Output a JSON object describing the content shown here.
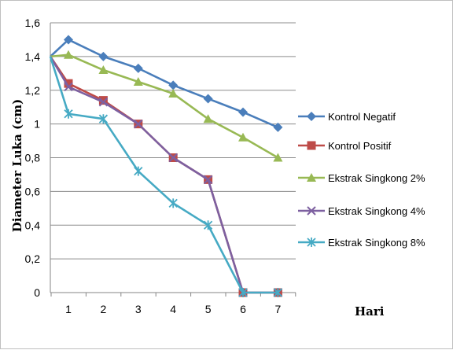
{
  "chart_data": {
    "type": "line",
    "x": [
      1,
      2,
      3,
      4,
      5,
      6,
      7
    ],
    "ylabel": "Diameter Luka (cm)",
    "xlabel": "Hari",
    "ylim": [
      0,
      1.6
    ],
    "yticks": [
      "0",
      "0,2",
      "0,4",
      "0,6",
      "0,8",
      "1",
      "1,2",
      "1,4",
      "1,6"
    ],
    "xticks": [
      "1",
      "2",
      "3",
      "4",
      "5",
      "6",
      "7"
    ],
    "grid": "horizontal",
    "legend_position": "right",
    "series": [
      {
        "name": "Kontrol Negatif",
        "color": "#4a7ebb",
        "marker": "diamond",
        "start": 1.4,
        "values": [
          1.5,
          1.4,
          1.33,
          1.23,
          1.15,
          1.07,
          0.98
        ]
      },
      {
        "name": "Kontrol Positif",
        "color": "#be4b48",
        "marker": "square",
        "start": 1.4,
        "values": [
          1.24,
          1.14,
          1.0,
          0.8,
          0.67,
          0.0,
          0.0
        ]
      },
      {
        "name": "Ekstrak Singkong 2%",
        "color": "#98b954",
        "marker": "triangle",
        "start": 1.4,
        "values": [
          1.41,
          1.32,
          1.25,
          1.18,
          1.03,
          0.92,
          0.8
        ]
      },
      {
        "name": "Ekstrak Singkong 4%",
        "color": "#7d60a0",
        "marker": "x",
        "start": 1.4,
        "values": [
          1.22,
          1.13,
          1.0,
          0.8,
          0.67,
          0.0,
          0.0
        ]
      },
      {
        "name": "Ekstrak Singkong 8%",
        "color": "#46aac4",
        "marker": "star",
        "start": 1.4,
        "values": [
          1.06,
          1.03,
          0.72,
          0.53,
          0.4,
          0.0,
          0.0
        ]
      }
    ]
  }
}
